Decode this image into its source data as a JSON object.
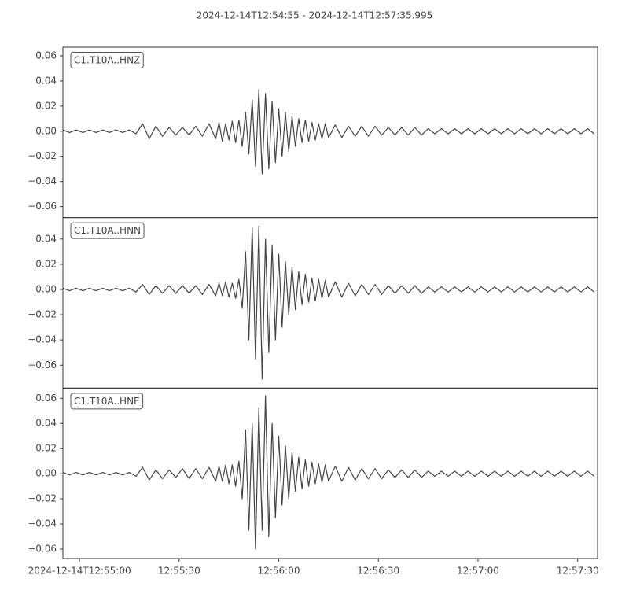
{
  "title": "2024-12-14T12:54:55  -  2024-12-14T12:57:35.995",
  "chart_data": [
    {
      "type": "line",
      "label": "C1.T10A..HNZ",
      "color": "#444444",
      "x": [
        0,
        2,
        4,
        6,
        8,
        10,
        12,
        14,
        16,
        18,
        20,
        22,
        24,
        26,
        28,
        30,
        32,
        34,
        36,
        38,
        40,
        42,
        44,
        46,
        47,
        48,
        49,
        50,
        51,
        52,
        53,
        54,
        55,
        56,
        57,
        58,
        59,
        60,
        61,
        62,
        63,
        64,
        65,
        66,
        67,
        68,
        69,
        70,
        71,
        72,
        73,
        74,
        75,
        76,
        77,
        78,
        79,
        80,
        82,
        84,
        86,
        88,
        90,
        92,
        94,
        96,
        98,
        100,
        102,
        104,
        106,
        108,
        110,
        112,
        114,
        116,
        118,
        120,
        122,
        124,
        126,
        128,
        130,
        132,
        134,
        136,
        138,
        140,
        142,
        144,
        146,
        148,
        150,
        152,
        154,
        156,
        158,
        160
      ],
      "values": [
        0.001,
        -0.001,
        0.001,
        -0.001,
        0.001,
        -0.001,
        0.001,
        -0.001,
        0.001,
        -0.001,
        0.001,
        -0.002,
        0.006,
        -0.006,
        0.004,
        -0.004,
        0.003,
        -0.003,
        0.003,
        -0.003,
        0.004,
        -0.004,
        0.006,
        -0.006,
        0.007,
        -0.008,
        0.006,
        -0.007,
        0.008,
        -0.009,
        0.009,
        -0.012,
        0.015,
        -0.018,
        0.025,
        -0.028,
        0.033,
        -0.034,
        0.03,
        -0.03,
        0.024,
        -0.025,
        0.018,
        -0.02,
        0.015,
        -0.016,
        0.012,
        -0.012,
        0.01,
        -0.009,
        0.009,
        -0.008,
        0.007,
        -0.007,
        0.006,
        -0.006,
        0.006,
        -0.005,
        0.005,
        -0.005,
        0.004,
        -0.004,
        0.004,
        -0.004,
        0.004,
        -0.003,
        0.003,
        -0.003,
        0.003,
        -0.003,
        0.003,
        -0.003,
        0.002,
        -0.002,
        0.002,
        -0.002,
        0.002,
        -0.002,
        0.002,
        -0.002,
        0.002,
        -0.002,
        0.002,
        -0.002,
        0.002,
        -0.002,
        0.002,
        -0.002,
        0.002,
        -0.002,
        0.002,
        -0.002,
        0.002,
        -0.002,
        0.002,
        -0.002,
        0.002,
        -0.002
      ],
      "xlim": [
        0,
        160.995
      ],
      "ylim": [
        -0.0688,
        0.0669
      ],
      "yticks": [
        {
          "value": -0.06,
          "label": "−0.06"
        },
        {
          "value": -0.04,
          "label": "−0.04"
        },
        {
          "value": -0.02,
          "label": "−0.02"
        },
        {
          "value": 0,
          "label": "0.00"
        },
        {
          "value": 0.02,
          "label": "0.02"
        },
        {
          "value": 0.04,
          "label": "0.04"
        },
        {
          "value": 0.06,
          "label": "0.06"
        }
      ]
    },
    {
      "type": "line",
      "label": "C1.T10A..HNN",
      "color": "#444444",
      "x": [
        0,
        2,
        4,
        6,
        8,
        10,
        12,
        14,
        16,
        18,
        20,
        22,
        24,
        26,
        28,
        30,
        32,
        34,
        36,
        38,
        40,
        42,
        44,
        46,
        47,
        48,
        49,
        50,
        51,
        52,
        53,
        54,
        55,
        56,
        57,
        58,
        59,
        60,
        61,
        62,
        63,
        64,
        65,
        66,
        67,
        68,
        69,
        70,
        71,
        72,
        73,
        74,
        75,
        76,
        77,
        78,
        79,
        80,
        82,
        84,
        86,
        88,
        90,
        92,
        94,
        96,
        98,
        100,
        102,
        104,
        106,
        108,
        110,
        112,
        114,
        116,
        118,
        120,
        122,
        124,
        126,
        128,
        130,
        132,
        134,
        136,
        138,
        140,
        142,
        144,
        146,
        148,
        150,
        152,
        154,
        156,
        158,
        160
      ],
      "values": [
        0.001,
        -0.001,
        0.001,
        -0.001,
        0.001,
        -0.001,
        0.001,
        -0.001,
        0.001,
        -0.001,
        0.001,
        -0.002,
        0.004,
        -0.004,
        0.003,
        -0.003,
        0.003,
        -0.003,
        0.003,
        -0.003,
        0.003,
        -0.004,
        0.004,
        -0.005,
        0.005,
        -0.005,
        0.006,
        -0.006,
        0.005,
        -0.007,
        0.008,
        -0.015,
        0.03,
        -0.04,
        0.049,
        -0.055,
        0.05,
        -0.071,
        0.04,
        -0.05,
        0.035,
        -0.04,
        0.028,
        -0.03,
        0.022,
        -0.02,
        0.018,
        -0.016,
        0.014,
        -0.012,
        0.012,
        -0.01,
        0.009,
        -0.009,
        0.008,
        -0.007,
        0.007,
        -0.006,
        0.006,
        -0.006,
        0.005,
        -0.005,
        0.004,
        -0.004,
        0.004,
        -0.004,
        0.003,
        -0.003,
        0.003,
        -0.003,
        0.003,
        -0.003,
        0.002,
        -0.002,
        0.002,
        -0.002,
        0.002,
        -0.002,
        0.002,
        -0.002,
        0.002,
        -0.002,
        0.002,
        -0.002,
        0.002,
        -0.002,
        0.002,
        -0.002,
        0.002,
        -0.002,
        0.002,
        -0.002,
        0.002,
        -0.002,
        0.002,
        -0.002,
        0.002,
        -0.002
      ],
      "xlim": [
        0,
        160.995
      ],
      "ylim": [
        -0.0781,
        0.0569
      ],
      "yticks": [
        {
          "value": -0.06,
          "label": "−0.06"
        },
        {
          "value": -0.04,
          "label": "−0.04"
        },
        {
          "value": -0.02,
          "label": "−0.02"
        },
        {
          "value": 0,
          "label": "0.00"
        },
        {
          "value": 0.02,
          "label": "0.02"
        },
        {
          "value": 0.04,
          "label": "0.04"
        }
      ]
    },
    {
      "type": "line",
      "label": "C1.T10A..HNE",
      "color": "#444444",
      "x": [
        0,
        2,
        4,
        6,
        8,
        10,
        12,
        14,
        16,
        18,
        20,
        22,
        24,
        26,
        28,
        30,
        32,
        34,
        36,
        38,
        40,
        42,
        44,
        46,
        47,
        48,
        49,
        50,
        51,
        52,
        53,
        54,
        55,
        56,
        57,
        58,
        59,
        60,
        61,
        62,
        63,
        64,
        65,
        66,
        67,
        68,
        69,
        70,
        71,
        72,
        73,
        74,
        75,
        76,
        77,
        78,
        79,
        80,
        82,
        84,
        86,
        88,
        90,
        92,
        94,
        96,
        98,
        100,
        102,
        104,
        106,
        108,
        110,
        112,
        114,
        116,
        118,
        120,
        122,
        124,
        126,
        128,
        130,
        132,
        134,
        136,
        138,
        140,
        142,
        144,
        146,
        148,
        150,
        152,
        154,
        156,
        158,
        160
      ],
      "values": [
        0.001,
        -0.001,
        0.001,
        -0.001,
        0.001,
        -0.001,
        0.001,
        -0.001,
        0.001,
        -0.001,
        0.001,
        -0.002,
        0.005,
        -0.005,
        0.003,
        -0.004,
        0.003,
        -0.003,
        0.004,
        -0.004,
        0.004,
        -0.004,
        0.005,
        -0.006,
        0.006,
        -0.006,
        0.007,
        -0.008,
        0.007,
        -0.01,
        0.01,
        -0.02,
        0.035,
        -0.045,
        0.04,
        -0.06,
        0.052,
        -0.045,
        0.062,
        -0.05,
        0.04,
        -0.035,
        0.03,
        -0.025,
        0.022,
        -0.02,
        0.017,
        -0.014,
        0.013,
        -0.012,
        0.011,
        -0.01,
        0.009,
        -0.008,
        0.008,
        -0.007,
        0.007,
        -0.006,
        0.006,
        -0.006,
        0.005,
        -0.005,
        0.004,
        -0.004,
        0.004,
        -0.004,
        0.003,
        -0.003,
        0.003,
        -0.003,
        0.003,
        -0.003,
        0.002,
        -0.002,
        0.002,
        -0.002,
        0.002,
        -0.002,
        0.002,
        -0.002,
        0.002,
        -0.002,
        0.002,
        -0.002,
        0.002,
        -0.002,
        0.002,
        -0.002,
        0.002,
        -0.002,
        0.002,
        -0.002,
        0.002,
        -0.002,
        0.002,
        -0.002,
        0.002,
        -0.002
      ],
      "xlim": [
        0,
        160.995
      ],
      "ylim": [
        -0.0675,
        0.0681
      ],
      "yticks": [
        {
          "value": -0.06,
          "label": "−0.06"
        },
        {
          "value": -0.04,
          "label": "−0.04"
        },
        {
          "value": -0.02,
          "label": "−0.02"
        },
        {
          "value": 0,
          "label": "0.00"
        },
        {
          "value": 0.02,
          "label": "0.02"
        },
        {
          "value": 0.04,
          "label": "0.04"
        },
        {
          "value": 0.06,
          "label": "0.06"
        }
      ],
      "xticks": [
        {
          "value": 5,
          "label": "2024-12-14T12:55:00"
        },
        {
          "value": 35,
          "label": "12:55:30"
        },
        {
          "value": 65,
          "label": "12:56:00"
        },
        {
          "value": 95,
          "label": "12:56:30"
        },
        {
          "value": 125,
          "label": "12:57:00"
        },
        {
          "value": 155,
          "label": "12:57:30"
        }
      ]
    }
  ]
}
